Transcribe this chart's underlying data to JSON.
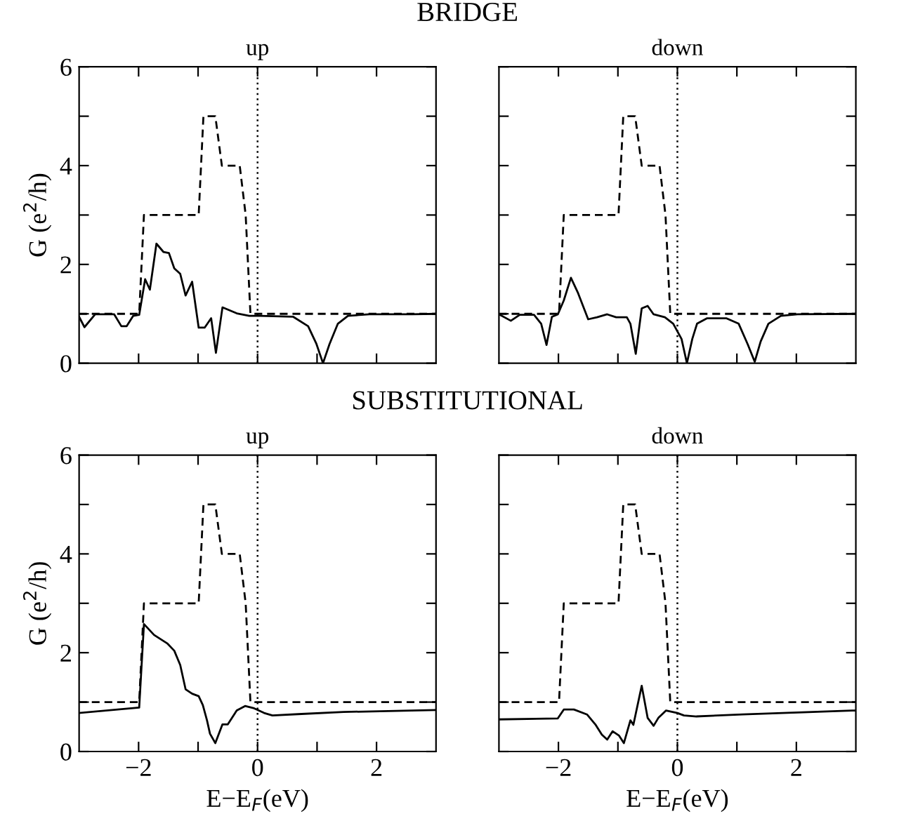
{
  "chart_data": [
    {
      "type": "line",
      "title": "up",
      "annotations": [
        "BRIDGE"
      ],
      "ylabel": "G (e$^{2}$/h)",
      "xlim": [
        -3,
        3
      ],
      "ylim": [
        0,
        6
      ],
      "xticks": [
        {
          "value": -2,
          "label": null
        },
        {
          "value": -1,
          "label": null
        },
        {
          "value": 0,
          "label": null
        },
        {
          "value": 1,
          "label": null
        },
        {
          "value": 2,
          "label": null
        }
      ],
      "yticks": [
        0,
        {
          "value": 1,
          "label": null
        },
        2,
        {
          "value": 3,
          "label": null
        },
        4,
        {
          "value": 5,
          "label": null
        },
        6
      ],
      "tick_labels": "y",
      "grid": false,
      "legend": false,
      "ref_lines": [
        {
          "axis": "x",
          "value": 0,
          "color": "#000000",
          "line_style": "dotted"
        }
      ],
      "series": [
        {
          "color": "#000000",
          "line_style": "dashed",
          "x": [
            -3,
            -1.99,
            -1.91,
            -0.99,
            -0.91,
            -0.71,
            -0.6,
            -0.3,
            -0.2,
            -0.12,
            3
          ],
          "values": [
            1,
            1,
            3,
            3,
            5,
            5,
            4,
            4,
            3,
            1,
            1
          ]
        },
        {
          "color": "#000000",
          "line_style": "solid",
          "x": [
            -3,
            -2.91,
            -2.73,
            -2.41,
            -2.29,
            -2.2,
            -2.09,
            -1.99,
            -1.89,
            -1.81,
            -1.7,
            -1.58,
            -1.49,
            -1.4,
            -1.3,
            -1.21,
            -1.1,
            -0.99,
            -0.89,
            -0.78,
            -0.7,
            -0.59,
            -0.35,
            -0.14,
            0.04,
            0.6,
            0.85,
            0.99,
            1.1,
            1.21,
            1.35,
            1.52,
            1.88,
            2.59,
            3
          ],
          "values": [
            0.94,
            0.73,
            0.99,
            0.99,
            0.75,
            0.75,
            0.96,
            0.98,
            1.7,
            1.49,
            2.42,
            2.25,
            2.23,
            1.92,
            1.81,
            1.37,
            1.65,
            0.72,
            0.72,
            0.91,
            0.21,
            1.13,
            1.01,
            0.96,
            0.96,
            0.94,
            0.75,
            0.39,
            0,
            0.39,
            0.8,
            0.96,
            0.99,
            0.99,
            1.0
          ]
        }
      ]
    },
    {
      "type": "line",
      "title": "down",
      "xlim": [
        -3,
        3
      ],
      "ylim": [
        0,
        6
      ],
      "xticks": [
        {
          "value": -2,
          "label": null
        },
        {
          "value": -1,
          "label": null
        },
        {
          "value": 0,
          "label": null
        },
        {
          "value": 1,
          "label": null
        },
        {
          "value": 2,
          "label": null
        }
      ],
      "yticks": [
        {
          "value": 0,
          "label": null
        },
        {
          "value": 1,
          "label": null
        },
        {
          "value": 2,
          "label": null
        },
        {
          "value": 3,
          "label": null
        },
        {
          "value": 4,
          "label": null
        },
        {
          "value": 5,
          "label": null
        },
        {
          "value": 6,
          "label": null
        }
      ],
      "tick_labels": false,
      "grid": false,
      "legend": false,
      "ref_lines": [
        {
          "axis": "x",
          "value": 0,
          "color": "#000000",
          "line_style": "dotted"
        }
      ],
      "series": [
        {
          "color": "#000000",
          "line_style": "dashed",
          "x": [
            -3,
            -1.99,
            -1.91,
            -0.99,
            -0.91,
            -0.71,
            -0.6,
            -0.3,
            -0.2,
            -0.12,
            3
          ],
          "values": [
            1,
            1,
            3,
            3,
            5,
            5,
            4,
            4,
            3,
            1,
            1
          ]
        },
        {
          "color": "#000000",
          "line_style": "solid",
          "x": [
            -3,
            -2.8,
            -2.65,
            -2.41,
            -2.29,
            -2.2,
            -2.11,
            -2.01,
            -1.91,
            -1.79,
            -1.67,
            -1.5,
            -1.35,
            -1.18,
            -1.03,
            -0.85,
            -0.79,
            -0.7,
            -0.6,
            -0.5,
            -0.4,
            -0.21,
            -0.07,
            0.07,
            0.16,
            0.25,
            0.33,
            0.5,
            0.82,
            1.03,
            1.18,
            1.3,
            1.4,
            1.53,
            1.74,
            2.02,
            3
          ],
          "values": [
            0.99,
            0.86,
            0.98,
            0.98,
            0.8,
            0.37,
            0.94,
            0.99,
            1.27,
            1.73,
            1.42,
            0.89,
            0.93,
            0.99,
            0.93,
            0.93,
            0.8,
            0.19,
            1.11,
            1.16,
            0.99,
            0.93,
            0.8,
            0.49,
            0,
            0.49,
            0.8,
            0.91,
            0.91,
            0.8,
            0.39,
            0.03,
            0.44,
            0.8,
            0.96,
            0.99,
            1.0
          ]
        }
      ]
    },
    {
      "type": "line",
      "title": "up",
      "annotations": [
        "SUBSTITUTIONAL"
      ],
      "xlabel": "E−E$_{F}$(eV)",
      "ylabel": "G (e$^{2}$/h)",
      "xlim": [
        -3,
        3
      ],
      "ylim": [
        0,
        6
      ],
      "xticks": [
        -2,
        {
          "value": -1,
          "label": null
        },
        0,
        {
          "value": 1,
          "label": null
        },
        2
      ],
      "yticks": [
        0,
        {
          "value": 1,
          "label": null
        },
        2,
        {
          "value": 3,
          "label": null
        },
        4,
        {
          "value": 5,
          "label": null
        },
        6
      ],
      "grid": false,
      "legend": false,
      "ref_lines": [
        {
          "axis": "x",
          "value": 0,
          "color": "#000000",
          "line_style": "dotted"
        }
      ],
      "series": [
        {
          "color": "#000000",
          "line_style": "dashed",
          "x": [
            -3,
            -1.99,
            -1.91,
            -0.99,
            -0.91,
            -0.71,
            -0.6,
            -0.3,
            -0.2,
            -0.12,
            3
          ],
          "values": [
            1,
            1,
            3,
            3,
            5,
            5,
            4,
            4,
            3,
            1,
            1
          ]
        },
        {
          "color": "#000000",
          "line_style": "solid",
          "x": [
            -3,
            -1.99,
            -1.91,
            -1.74,
            -1.52,
            -1.4,
            -1.3,
            -1.21,
            -1.1,
            -0.99,
            -0.92,
            -0.85,
            -0.8,
            -0.71,
            -0.59,
            -0.5,
            -0.35,
            -0.21,
            -0.07,
            0.11,
            0.25,
            0.74,
            1.45,
            2.59,
            3
          ],
          "values": [
            0.78,
            0.89,
            2.58,
            2.36,
            2.19,
            2.04,
            1.75,
            1.26,
            1.17,
            1.12,
            0.94,
            0.63,
            0.36,
            0.17,
            0.55,
            0.55,
            0.83,
            0.92,
            0.88,
            0.78,
            0.73,
            0.76,
            0.8,
            0.83,
            0.84
          ]
        }
      ]
    },
    {
      "type": "line",
      "title": "down",
      "xlabel": "E−E$_{F}$(eV)",
      "xlim": [
        -3,
        3
      ],
      "ylim": [
        0,
        6
      ],
      "xticks": [
        -2,
        {
          "value": -1,
          "label": null
        },
        0,
        {
          "value": 1,
          "label": null
        },
        2
      ],
      "yticks": [
        {
          "value": 0,
          "label": null
        },
        {
          "value": 1,
          "label": null
        },
        {
          "value": 2,
          "label": null
        },
        {
          "value": 3,
          "label": null
        },
        {
          "value": 4,
          "label": null
        },
        {
          "value": 5,
          "label": null
        },
        {
          "value": 6,
          "label": null
        }
      ],
      "tick_labels": "x",
      "grid": false,
      "legend": false,
      "ref_lines": [
        {
          "axis": "x",
          "value": 0,
          "color": "#000000",
          "line_style": "dotted"
        }
      ],
      "series": [
        {
          "color": "#000000",
          "line_style": "dashed",
          "x": [
            -3,
            -1.99,
            -1.91,
            -0.99,
            -0.91,
            -0.71,
            -0.6,
            -0.3,
            -0.2,
            -0.12,
            3
          ],
          "values": [
            1,
            1,
            3,
            3,
            5,
            5,
            4,
            4,
            3,
            1,
            1
          ]
        },
        {
          "color": "#000000",
          "line_style": "solid",
          "x": [
            -3,
            -2.01,
            -1.91,
            -1.74,
            -1.52,
            -1.38,
            -1.27,
            -1.18,
            -1.09,
            -0.98,
            -0.9,
            -0.79,
            -0.74,
            -0.6,
            -0.5,
            -0.4,
            -0.32,
            -0.19,
            0,
            0.11,
            0.32,
            1.1,
            2.94,
            3
          ],
          "values": [
            0.65,
            0.67,
            0.85,
            0.85,
            0.75,
            0.55,
            0.34,
            0.24,
            0.41,
            0.32,
            0.17,
            0.63,
            0.54,
            1.33,
            0.68,
            0.52,
            0.68,
            0.83,
            0.78,
            0.73,
            0.71,
            0.75,
            0.83,
            0.83
          ]
        }
      ]
    }
  ]
}
